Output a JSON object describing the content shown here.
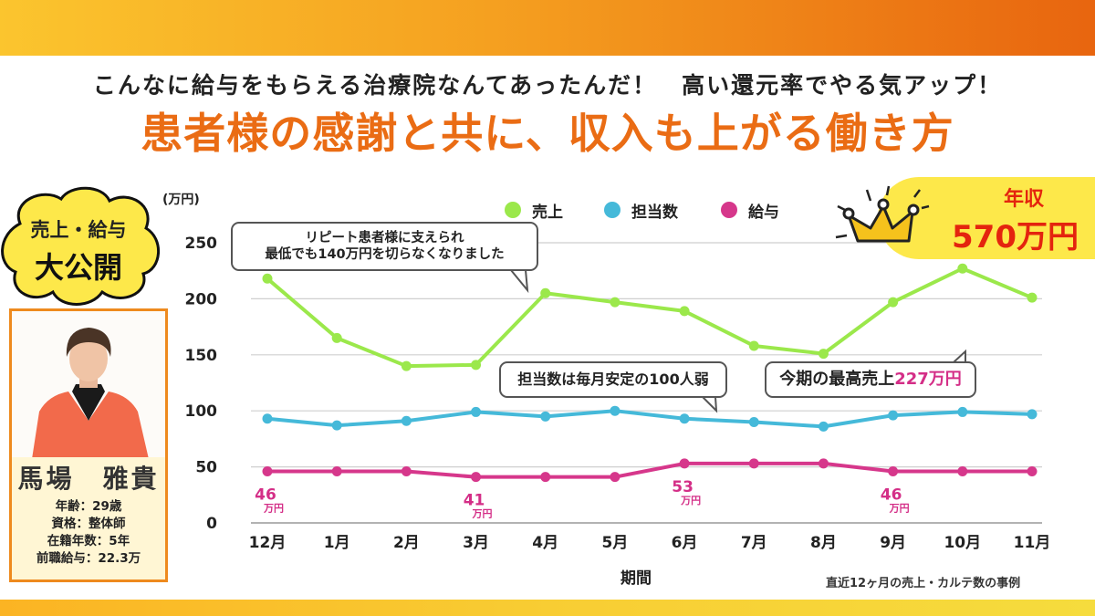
{
  "header": {
    "subhead": "こんなに給与をもらえる治療院なんてあったんだ！　高い還元率でやる気アップ！",
    "headline": "患者様の感謝と共に、収入も上がる働き方"
  },
  "cloud_badge": {
    "line1": "売上・給与",
    "line2": "大公開"
  },
  "profile": {
    "name": "馬場　雅貴",
    "facts": [
      "年齢：29歳",
      "資格：整体師",
      "在籍年数：5年",
      "前職給与：22.3万"
    ]
  },
  "income_badge": {
    "label": "年収",
    "value": "570万円"
  },
  "callouts": {
    "repeat": {
      "line1": "リピート患者様に支えられ",
      "line2": "最低でも140万円を切らなくなりました"
    },
    "staff": "担当数は毎月安定の100人弱",
    "peak_prefix": "今期の最高売上",
    "peak_value": "227万円"
  },
  "footnote": "直近12ヶ月の売上・カルテ数の事例",
  "colors": {
    "sales": "#9be84b",
    "count": "#45b9d9",
    "salary": "#d6378b",
    "accent": "#ea6c14"
  },
  "chart_data": {
    "type": "line",
    "title": "",
    "xlabel": "期間",
    "ylabel": "(万円)",
    "ylim": [
      0,
      250
    ],
    "yticks": [
      0,
      50,
      100,
      150,
      200,
      250
    ],
    "grid": true,
    "legend_position": "top",
    "categories": [
      "12月",
      "1月",
      "2月",
      "3月",
      "4月",
      "5月",
      "6月",
      "7月",
      "8月",
      "9月",
      "10月",
      "11月"
    ],
    "series": [
      {
        "name": "売上",
        "color": "#9be84b",
        "values": [
          218,
          165,
          140,
          141,
          205,
          197,
          189,
          158,
          151,
          197,
          227,
          201
        ]
      },
      {
        "name": "担当数",
        "color": "#45b9d9",
        "values": [
          93,
          87,
          91,
          99,
          95,
          100,
          93,
          90,
          86,
          96,
          99,
          97
        ]
      },
      {
        "name": "給与",
        "color": "#d6378b",
        "values": [
          46,
          46,
          46,
          41,
          41,
          41,
          53,
          53,
          53,
          46,
          46,
          46
        ]
      }
    ],
    "data_labels": [
      {
        "series": "給与",
        "index": 0,
        "text": "46",
        "unit": "万円"
      },
      {
        "series": "給与",
        "index": 3,
        "text": "41",
        "unit": "万円"
      },
      {
        "series": "給与",
        "index": 6,
        "text": "53",
        "unit": "万円"
      },
      {
        "series": "給与",
        "index": 9,
        "text": "46",
        "unit": "万円"
      }
    ]
  }
}
